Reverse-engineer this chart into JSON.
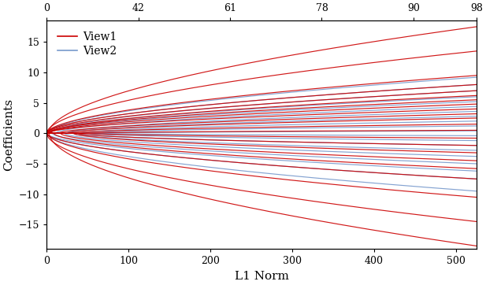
{
  "xlabel_bottom": "L1 Norm",
  "ylabel": "Coefficients",
  "xlim": [
    0,
    525
  ],
  "ylim": [
    -19,
    18.5
  ],
  "yticks": [
    -15,
    -10,
    -5,
    0,
    5,
    10,
    15
  ],
  "xticks_bottom": [
    0,
    100,
    200,
    300,
    400,
    500
  ],
  "xticks_top_labels": [
    "0",
    "42",
    "61",
    "78",
    "90",
    "98"
  ],
  "xticks_top_pos": [
    0,
    112,
    224,
    336,
    448,
    525
  ],
  "view1_color": "#CC0000",
  "view2_color": "#7799CC",
  "legend_labels": [
    "View1",
    "View2"
  ],
  "max_x": 525,
  "origin_x": 48,
  "figsize": [
    6.17,
    3.62
  ],
  "dpi": 100,
  "view1_final_values": [
    17.5,
    13.5,
    9.5,
    8.0,
    7.0,
    6.2,
    5.5,
    4.8,
    4.0,
    3.2,
    2.5,
    1.5,
    0.5,
    -0.8,
    -2.0,
    -3.2,
    -4.5,
    -5.8,
    -7.5,
    -10.5,
    -14.5,
    -18.5
  ],
  "view1_onset": [
    0,
    0,
    0,
    0,
    0,
    0,
    0,
    0,
    0,
    10,
    20,
    30,
    50,
    50,
    40,
    30,
    20,
    10,
    0,
    0,
    0,
    0
  ],
  "view2_final_values": [
    9.2,
    8.0,
    7.0,
    6.0,
    5.2,
    4.4,
    3.6,
    2.8,
    2.0,
    1.2,
    0.4,
    -0.4,
    -1.2,
    -2.0,
    -2.8,
    -3.8,
    -5.0,
    -6.2,
    -7.5,
    -9.5
  ],
  "view2_onset": [
    0,
    0,
    0,
    0,
    0,
    10,
    20,
    30,
    40,
    50,
    60,
    60,
    50,
    40,
    30,
    20,
    10,
    0,
    0,
    0
  ]
}
